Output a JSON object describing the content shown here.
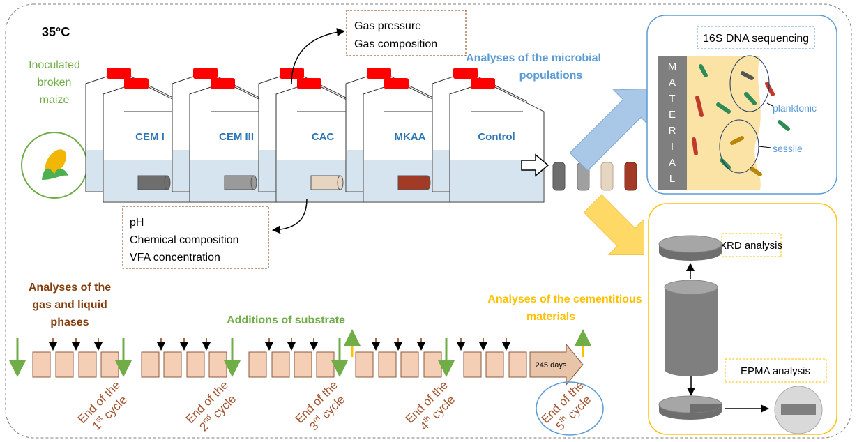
{
  "temperature": "35°C",
  "inoculum": [
    "Inoculated",
    "broken",
    "maize"
  ],
  "bottles": [
    "CEM I",
    "CEM III",
    "CAC",
    "MKAA",
    "Control"
  ],
  "gas_analyses": [
    "Gas pressure",
    "Gas composition"
  ],
  "liquid_analyses": [
    "pH",
    "Chemical composition",
    "VFA concentration"
  ],
  "microbial": {
    "title": [
      "Analyses of the microbial",
      "populations"
    ],
    "method": "16S DNA sequencing",
    "material": "MATERIAL",
    "planktonic": "planktonic",
    "sessile": "sessile"
  },
  "cementitious": {
    "title": [
      "Analyses of the cementitious",
      "materials"
    ],
    "xrd": "XRD analysis",
    "epma": "EPMA analysis"
  },
  "timeline": {
    "gas_liquid_title": [
      "Analyses of the",
      "gas and liquid",
      "phases"
    ],
    "substrate_title": "Additions of substrate",
    "duration": "245 days",
    "cycles": [
      {
        "prefix": "End of the",
        "ordinal": "1",
        "suffix": "st",
        "word": "cycle"
      },
      {
        "prefix": "End of the",
        "ordinal": "2",
        "suffix": "nd",
        "word": "cycle"
      },
      {
        "prefix": "End of the",
        "ordinal": "3",
        "suffix": "rd",
        "word": "cycle"
      },
      {
        "prefix": "End of the",
        "ordinal": "4",
        "suffix": "th",
        "word": "cycle"
      },
      {
        "prefix": "End of the",
        "ordinal": "5",
        "suffix": "th",
        "word": "cycle"
      }
    ]
  }
}
